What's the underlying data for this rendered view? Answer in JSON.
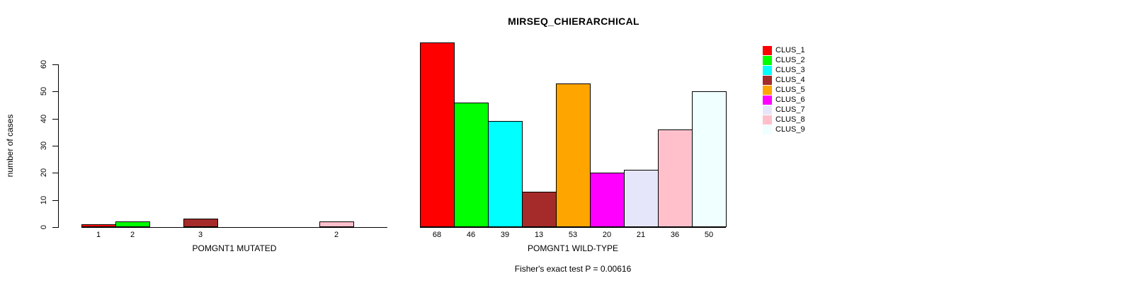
{
  "title": "MIRSEQ_CHIERARCHICAL",
  "chart_data": {
    "type": "bar",
    "title": "MIRSEQ_CHIERARCHICAL",
    "ylabel": "number of cases",
    "ylim": [
      0,
      60
    ],
    "yticks": [
      0,
      10,
      20,
      30,
      40,
      50,
      60
    ],
    "grid": false,
    "legend_position": "right",
    "legend": [
      {
        "label": "CLUS_1",
        "color": "#FF0000"
      },
      {
        "label": "CLUS_2",
        "color": "#00FF00"
      },
      {
        "label": "CLUS_3",
        "color": "#00FFFF"
      },
      {
        "label": "CLUS_4",
        "color": "#A52A2A"
      },
      {
        "label": "CLUS_5",
        "color": "#FFA500"
      },
      {
        "label": "CLUS_6",
        "color": "#FF00FF"
      },
      {
        "label": "CLUS_7",
        "color": "#E6E6FA"
      },
      {
        "label": "CLUS_8",
        "color": "#FFC0CB"
      },
      {
        "label": "CLUS_9",
        "color": "#F0FFFF"
      }
    ],
    "panels": [
      {
        "xlabel": "POMGNT1 MUTATED",
        "categories": [
          "CLUS_1",
          "CLUS_2",
          "CLUS_3",
          "CLUS_4",
          "CLUS_5",
          "CLUS_6",
          "CLUS_7",
          "CLUS_8",
          "CLUS_9"
        ],
        "values": [
          1,
          2,
          0,
          3,
          0,
          0,
          0,
          2,
          0
        ],
        "bar_labels": [
          "1",
          "2",
          "",
          "3",
          "",
          "",
          "",
          "2",
          ""
        ]
      },
      {
        "xlabel": "POMGNT1 WILD-TYPE",
        "categories": [
          "CLUS_1",
          "CLUS_2",
          "CLUS_3",
          "CLUS_4",
          "CLUS_5",
          "CLUS_6",
          "CLUS_7",
          "CLUS_8",
          "CLUS_9"
        ],
        "values": [
          68,
          46,
          39,
          13,
          53,
          20,
          21,
          36,
          50
        ],
        "bar_labels": [
          "68",
          "46",
          "39",
          "13",
          "53",
          "20",
          "21",
          "36",
          "50"
        ]
      }
    ],
    "annotation": "Fisher's exact test P = 0.00616"
  }
}
